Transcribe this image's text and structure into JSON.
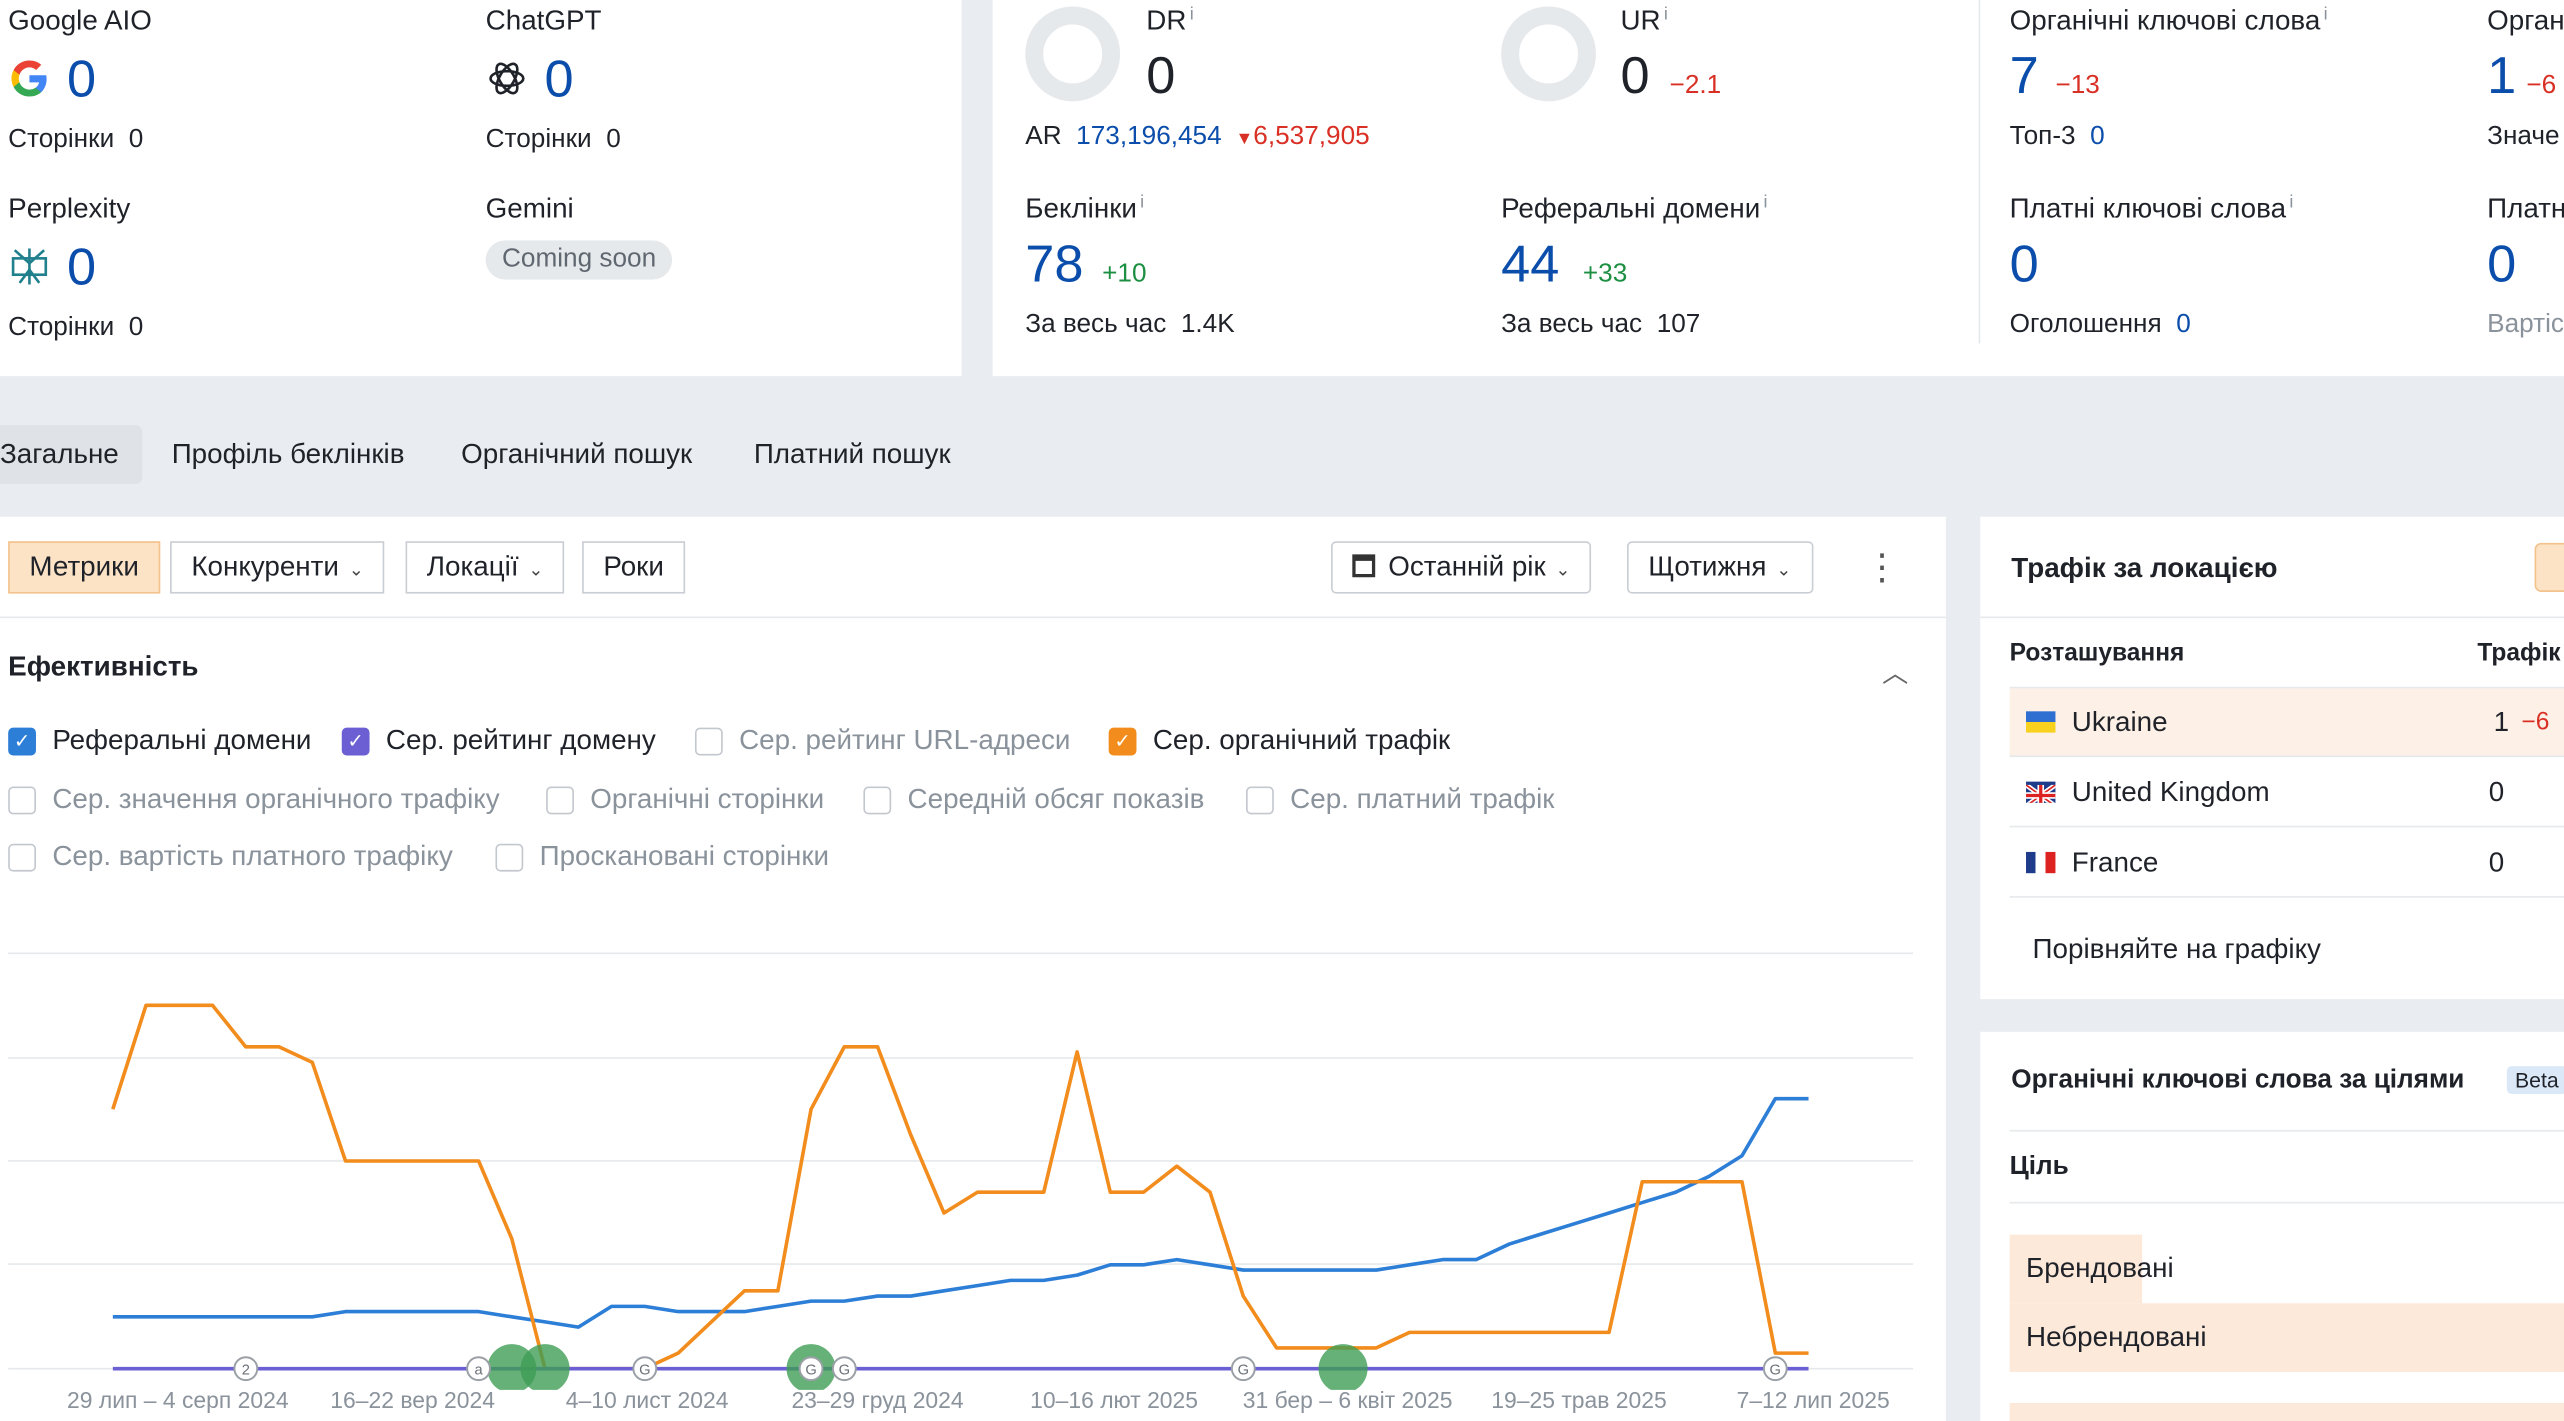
{
  "ai": {
    "google": {
      "name": "Google AIO",
      "value": "0",
      "pages_label": "Сторінки",
      "pages": "0"
    },
    "chatgpt": {
      "name": "ChatGPT",
      "value": "0",
      "pages_label": "Сторінки",
      "pages": "0"
    },
    "perplexity": {
      "name": "Perplexity",
      "value": "0",
      "pages_label": "Сторінки",
      "pages": "0"
    },
    "gemini": {
      "name": "Gemini",
      "badge": "Coming soon"
    }
  },
  "metrics": {
    "dr": {
      "label": "DR",
      "info": "i",
      "value": "0"
    },
    "ur": {
      "label": "UR",
      "info": "i",
      "value": "0",
      "delta": "−2.1"
    },
    "ar": {
      "label": "AR",
      "value": "173,196,454",
      "delta": "6,537,905"
    },
    "backlinks": {
      "label": "Беклінки",
      "info": "i",
      "value": "78",
      "delta": "+10",
      "all_time_label": "За весь час",
      "all_time": "1.4K"
    },
    "ref_domains": {
      "label": "Реферальні домени",
      "info": "i",
      "value": "44",
      "delta": "+33",
      "all_time_label": "За весь час",
      "all_time": "107"
    },
    "organic_kw": {
      "label": "Органічні ключові слова",
      "info": "i",
      "value": "7",
      "delta": "−13",
      "top3_label": "Топ-3",
      "top3": "0"
    },
    "organic_traffic": {
      "label": "Орган",
      "value": "1",
      "delta": "−6",
      "sub_label": "Значе"
    },
    "paid_kw": {
      "label": "Платні ключові слова",
      "info": "i",
      "value": "0",
      "ads_label": "Оголошення",
      "ads": "0"
    },
    "paid_traffic": {
      "label": "Платн",
      "value": "0",
      "sub_label": "Вартіс"
    }
  },
  "tabs": [
    "Загальне",
    "Профіль беклінків",
    "Органічний пошук",
    "Платний пошук"
  ],
  "toolbar": {
    "metrics": "Метрики",
    "competitors": "Конкуренти",
    "locations": "Локації",
    "years": "Роки",
    "period": "Останній рік",
    "interval": "Щотижня",
    "more": "⋮"
  },
  "performance": {
    "title": "Ефективність",
    "checks": [
      {
        "label": "Реферальні домени",
        "checked": true,
        "color": "#2d7ed6"
      },
      {
        "label": "Сер. рейтинг домену",
        "checked": true,
        "color": "#6b5fd3"
      },
      {
        "label": "Сер. рейтинг URL-адреси",
        "checked": false
      },
      {
        "label": "Сер. органічний трафік",
        "checked": true,
        "color": "#f28c1c"
      },
      {
        "label": "Сер. значення органічного трафіку",
        "checked": false
      },
      {
        "label": "Органічні сторінки",
        "checked": false
      },
      {
        "label": "Середній обсяг показів",
        "checked": false
      },
      {
        "label": "Сер. платний трафік",
        "checked": false
      },
      {
        "label": "Сер. вартість платного трафіку",
        "checked": false
      },
      {
        "label": "Просканованi сторінки",
        "checked": false
      }
    ]
  },
  "chart_data": {
    "type": "line",
    "x_tick_labels": [
      "29 лип – 4 серп 2024",
      "16–22 вер 2024",
      "4–10 лист 2024",
      "23–29 груд 2024",
      "10–16 лют 2025",
      "31 бер – 6 квіт 2025",
      "19–25 трав 2025",
      "7–12 лип 2025"
    ],
    "n_points": 52,
    "grid": true,
    "series": [
      {
        "name": "Реферальні домени",
        "color": "#2d7ed6",
        "values": [
          10,
          10,
          10,
          10,
          10,
          10,
          10,
          11,
          11,
          11,
          11,
          11,
          10,
          9,
          8,
          12,
          12,
          11,
          11,
          11,
          12,
          13,
          13,
          14,
          14,
          15,
          16,
          17,
          17,
          18,
          20,
          20,
          21,
          20,
          19,
          19,
          19,
          19,
          19,
          20,
          21,
          21,
          24,
          26,
          28,
          30,
          32,
          34,
          37,
          41,
          52,
          52
        ]
      },
      {
        "name": "Сер. органічний трафік",
        "color": "#f28c1c",
        "values": [
          50,
          70,
          70,
          70,
          62,
          62,
          59,
          40,
          40,
          40,
          40,
          40,
          25,
          0,
          0,
          0,
          0,
          3,
          9,
          15,
          15,
          50,
          62,
          62,
          45,
          30,
          34,
          34,
          34,
          61,
          34,
          34,
          39,
          34,
          14,
          4,
          4,
          4,
          4,
          7,
          7,
          7,
          7,
          7,
          7,
          7,
          36,
          36,
          36,
          36,
          3,
          3
        ]
      },
      {
        "name": "Сер. рейтинг домену",
        "color": "#6b5fd3",
        "values": [
          0,
          0,
          0,
          0,
          0,
          0,
          0,
          0,
          0,
          0,
          0,
          0,
          0,
          0,
          0,
          0,
          0,
          0,
          0,
          0,
          0,
          0,
          0,
          0,
          0,
          0,
          0,
          0,
          0,
          0,
          0,
          0,
          0,
          0,
          0,
          0,
          0,
          0,
          0,
          0,
          0,
          0,
          0,
          0,
          0,
          0,
          0,
          0,
          0,
          0,
          0,
          0
        ]
      }
    ],
    "annotations": [
      {
        "x": 4,
        "label": "2"
      },
      {
        "x": 11,
        "label": "a"
      },
      {
        "x": 16,
        "label": "G"
      },
      {
        "x": 21,
        "label": "G"
      },
      {
        "x": 22,
        "label": "G"
      },
      {
        "x": 34,
        "label": "G"
      },
      {
        "x": 50,
        "label": "G"
      }
    ],
    "events": [
      12,
      13,
      21,
      37
    ]
  },
  "location_panel": {
    "title": "Трафік за локацією",
    "col_location": "Розташування",
    "col_traffic": "Трафік",
    "rows": [
      {
        "country": "Ukraine",
        "traffic": "1",
        "delta": "−6"
      },
      {
        "country": "United Kingdom",
        "traffic": "0"
      },
      {
        "country": "France",
        "traffic": "0"
      }
    ],
    "compare": "Порівняйте на графіку"
  },
  "intent_panel": {
    "title": "Органічні ключові слова за цілями",
    "beta": "Beta",
    "col_intent": "Ціль",
    "rows": [
      "Брендовані",
      "Небрендовані"
    ]
  }
}
